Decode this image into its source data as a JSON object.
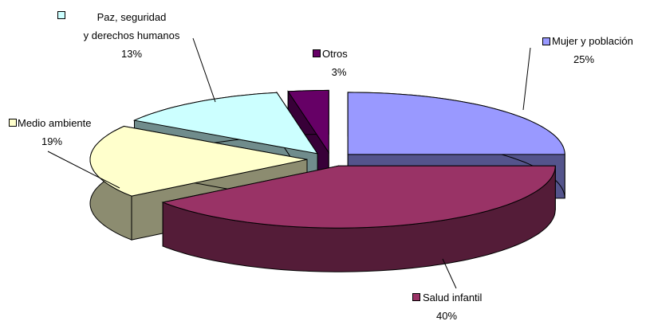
{
  "chart_data": {
    "type": "pie",
    "categories": [
      "Mujer y población",
      "Salud infantil",
      "Medio ambiente",
      "Paz, seguridad\ny derechos humanos",
      "Otros"
    ],
    "values": [
      25,
      40,
      19,
      13,
      3
    ],
    "value_labels": [
      "25%",
      "40%",
      "19%",
      "13%",
      "3%"
    ],
    "colors": [
      "#9999ff",
      "#993366",
      "#ffffcc",
      "#ccffff",
      "#660066"
    ]
  }
}
